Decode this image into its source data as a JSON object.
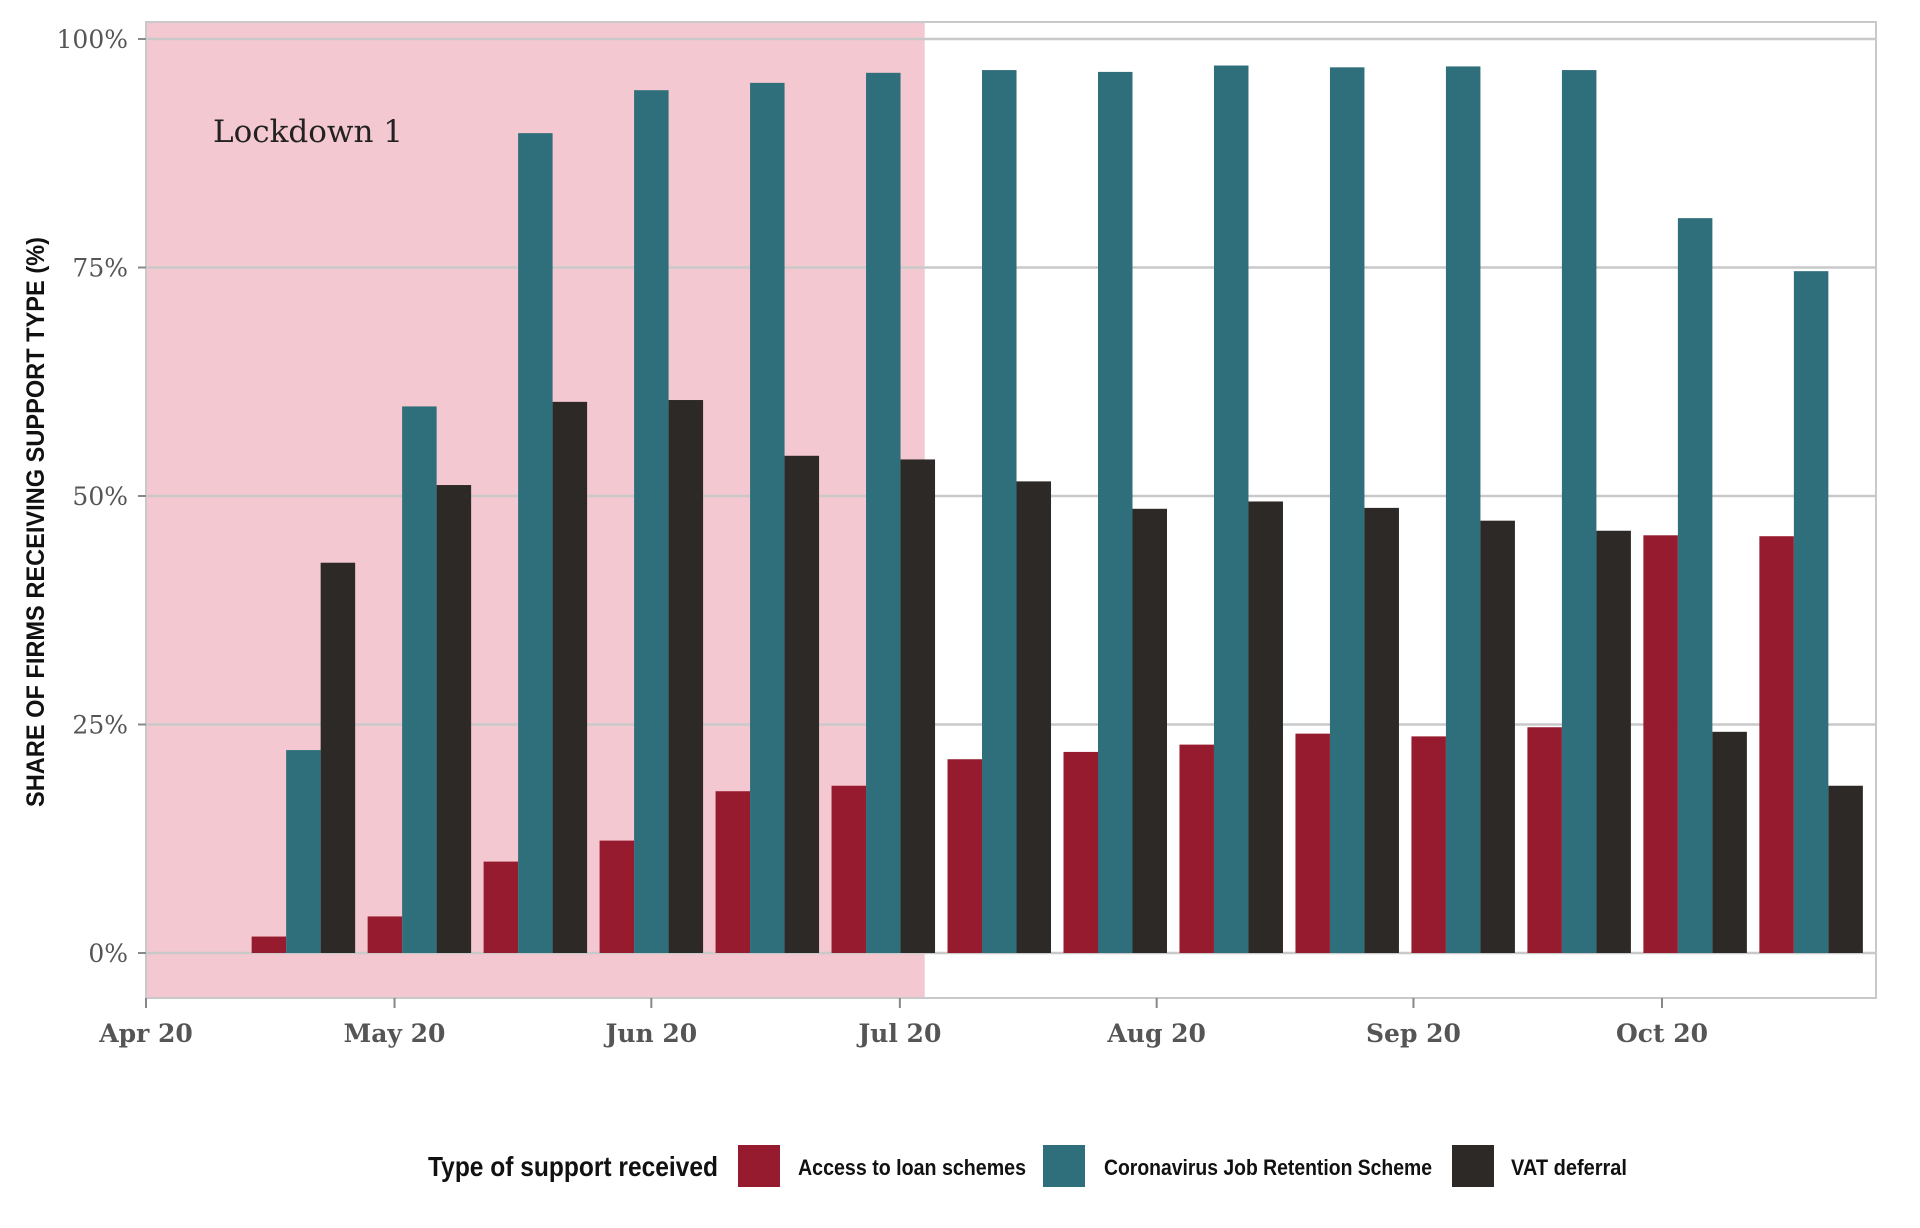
{
  "chart_data": {
    "type": "bar",
    "ylabel": "SHARE OF FIRMS RECEIVING SUPPORT TYPE (%)",
    "xlabel": "",
    "ylim": [
      0,
      100
    ],
    "y_ticks": [
      "0%",
      "25%",
      "50%",
      "75%",
      "100%"
    ],
    "x_ticks": [
      "Apr 20",
      "May 20",
      "Jun 20",
      "Jul 20",
      "Aug 20",
      "Sep 20",
      "Oct 20"
    ],
    "x_tick_dates": [
      "2020-04-01",
      "2020-05-01",
      "2020-06-01",
      "2020-07-01",
      "2020-08-01",
      "2020-09-01",
      "2020-10-01"
    ],
    "x_range": [
      "2020-04-01",
      "2020-10-31"
    ],
    "grid": true,
    "x": [
      "2020-04-20",
      "2020-05-04",
      "2020-05-18",
      "2020-06-01",
      "2020-06-15",
      "2020-06-29",
      "2020-07-13",
      "2020-07-27",
      "2020-08-10",
      "2020-08-24",
      "2020-09-07",
      "2020-09-21",
      "2020-10-05",
      "2020-10-19"
    ],
    "series": [
      {
        "name": "Access to loan schemes",
        "color": "#971B2F",
        "values": [
          1.8,
          4,
          10,
          12.3,
          17.7,
          18.3,
          21.2,
          22,
          22.8,
          24,
          23.7,
          24.7,
          45.7,
          45.6
        ]
      },
      {
        "name": "Coronavirus Job Retention Scheme",
        "color": "#2E6F7B",
        "values": [
          22.2,
          59.8,
          89.7,
          94.4,
          95.2,
          96.3,
          96.6,
          96.4,
          97.1,
          96.9,
          97,
          96.6,
          80.4,
          74.6
        ]
      },
      {
        "name": "VAT deferral",
        "color": "#2D2926",
        "values": [
          42.7,
          51.2,
          60.3,
          60.5,
          54.4,
          54,
          51.6,
          48.6,
          49.4,
          48.7,
          47.3,
          46.2,
          24.2,
          18.3
        ]
      }
    ],
    "shaded_region": {
      "label": "Lockdown 1",
      "start": "2020-04-01",
      "end": "2020-07-04",
      "color": "#F4C8D0"
    },
    "legend": {
      "title": "Type of support received",
      "position": "bottom"
    }
  }
}
